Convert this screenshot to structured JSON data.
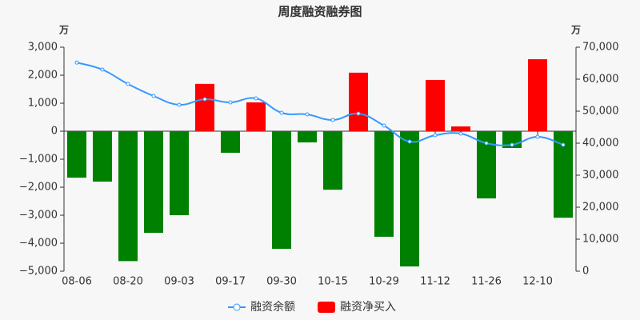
{
  "chart_data": {
    "type": "bar-line",
    "title": "周度融资融券图",
    "y_unit": "万",
    "y2_unit": "万",
    "categories": [
      "08-06",
      null,
      "08-20",
      null,
      "09-03",
      null,
      "09-17",
      null,
      "09-30",
      null,
      "10-15",
      null,
      "10-29",
      null,
      "11-12",
      null,
      "11-26",
      null,
      "12-10",
      null
    ],
    "series": [
      {
        "name": "融资余额",
        "type": "line",
        "axis": "y2",
        "color": "#3399ff",
        "values": [
          65200,
          63000,
          58500,
          54750,
          52000,
          53750,
          52750,
          54000,
          49500,
          49000,
          47250,
          49250,
          45500,
          40500,
          42500,
          43000,
          40000,
          39500,
          42000,
          39500
        ]
      },
      {
        "name": "融资净买入",
        "type": "bar",
        "color": "#ff0000",
        "negative_color": "#008000",
        "values": [
          -1660,
          -1800,
          -4640,
          -3630,
          -3000,
          1690,
          -770,
          1030,
          -4200,
          -400,
          -2090,
          2090,
          -3770,
          -4830,
          1830,
          170,
          -2400,
          -600,
          2570,
          -3090
        ]
      }
    ],
    "ylim": [
      -5000,
      3000
    ],
    "yticks": [
      {
        "value": -5000,
        "label": "−5,000"
      },
      {
        "value": -4000,
        "label": "−4,000"
      },
      {
        "value": -3000,
        "label": "−3,000"
      },
      {
        "value": -2000,
        "label": "−2,000"
      },
      {
        "value": -1000,
        "label": "−1,000"
      },
      0,
      {
        "value": 1000,
        "label": "1,000"
      },
      {
        "value": 2000,
        "label": "2,000"
      },
      {
        "value": 3000,
        "label": "3,000"
      }
    ],
    "y2lim": [
      0,
      70000
    ],
    "y2ticks": [
      0,
      {
        "value": 10000,
        "label": "10,000"
      },
      {
        "value": 20000,
        "label": "20,000"
      },
      {
        "value": 30000,
        "label": "30,000"
      },
      {
        "value": 40000,
        "label": "40,000"
      },
      {
        "value": 50000,
        "label": "50,000"
      },
      {
        "value": 60000,
        "label": "60,000"
      },
      {
        "value": 70000,
        "label": "70,000"
      }
    ]
  }
}
